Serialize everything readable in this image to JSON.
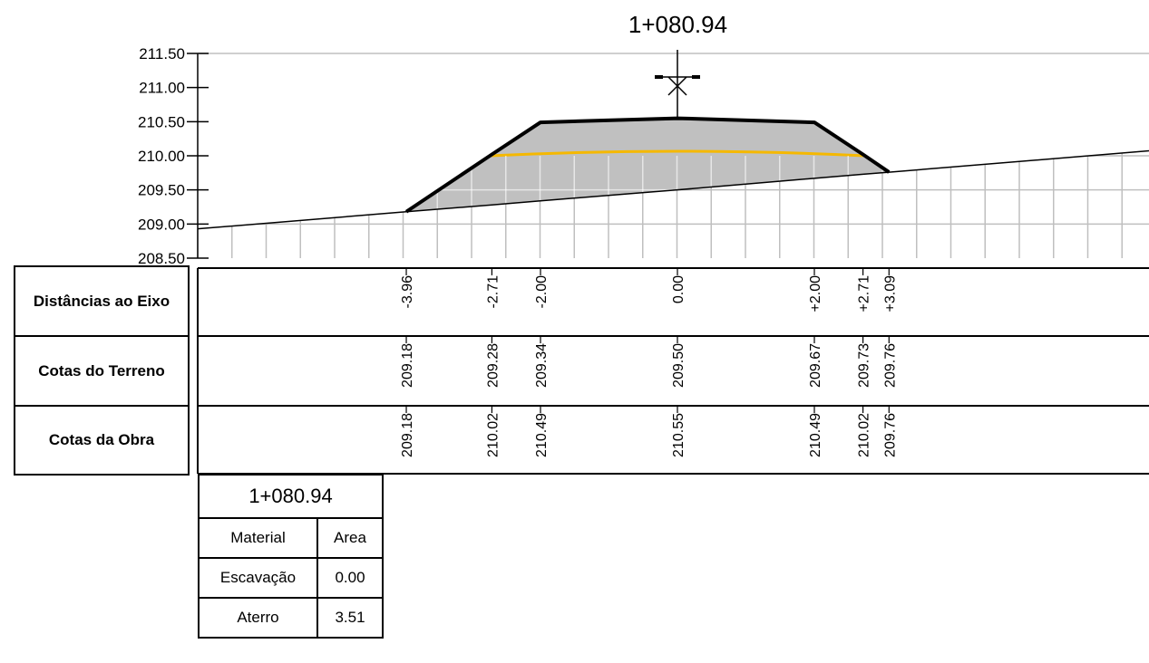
{
  "station": "1+080.94",
  "colors": {
    "fill": "#FFC000",
    "cut": "#C0C0C0",
    "grid": "#BFBFBF",
    "line": "#000000"
  },
  "axis": {
    "y_ticks": [
      "211.50",
      "211.00",
      "210.50",
      "210.00",
      "209.50",
      "209.00",
      "208.50"
    ],
    "elev_range": [
      208.5,
      211.5
    ]
  },
  "table": {
    "rows": [
      "Distâncias ao Eixo",
      "Cotas do Terreno",
      "Cotas da Obra"
    ],
    "points": [
      {
        "offset": "-3.96",
        "terrain": "209.18",
        "design": "209.18"
      },
      {
        "offset": "-2.71",
        "terrain": "209.28",
        "design": "210.02"
      },
      {
        "offset": "-2.00",
        "terrain": "209.34",
        "design": "210.49"
      },
      {
        "offset": "0.00",
        "terrain": "209.50",
        "design": "210.55"
      },
      {
        "offset": "+2.00",
        "terrain": "209.67",
        "design": "210.49"
      },
      {
        "offset": "+2.71",
        "terrain": "209.73",
        "design": "210.02"
      },
      {
        "offset": "+3.09",
        "terrain": "209.76",
        "design": "209.76"
      }
    ]
  },
  "area_table": {
    "title": "1+080.94",
    "headers": [
      "Material",
      "Area"
    ],
    "rows": [
      {
        "material": "Escavação",
        "area": "0.00"
      },
      {
        "material": "Aterro",
        "area": "3.51"
      }
    ]
  }
}
